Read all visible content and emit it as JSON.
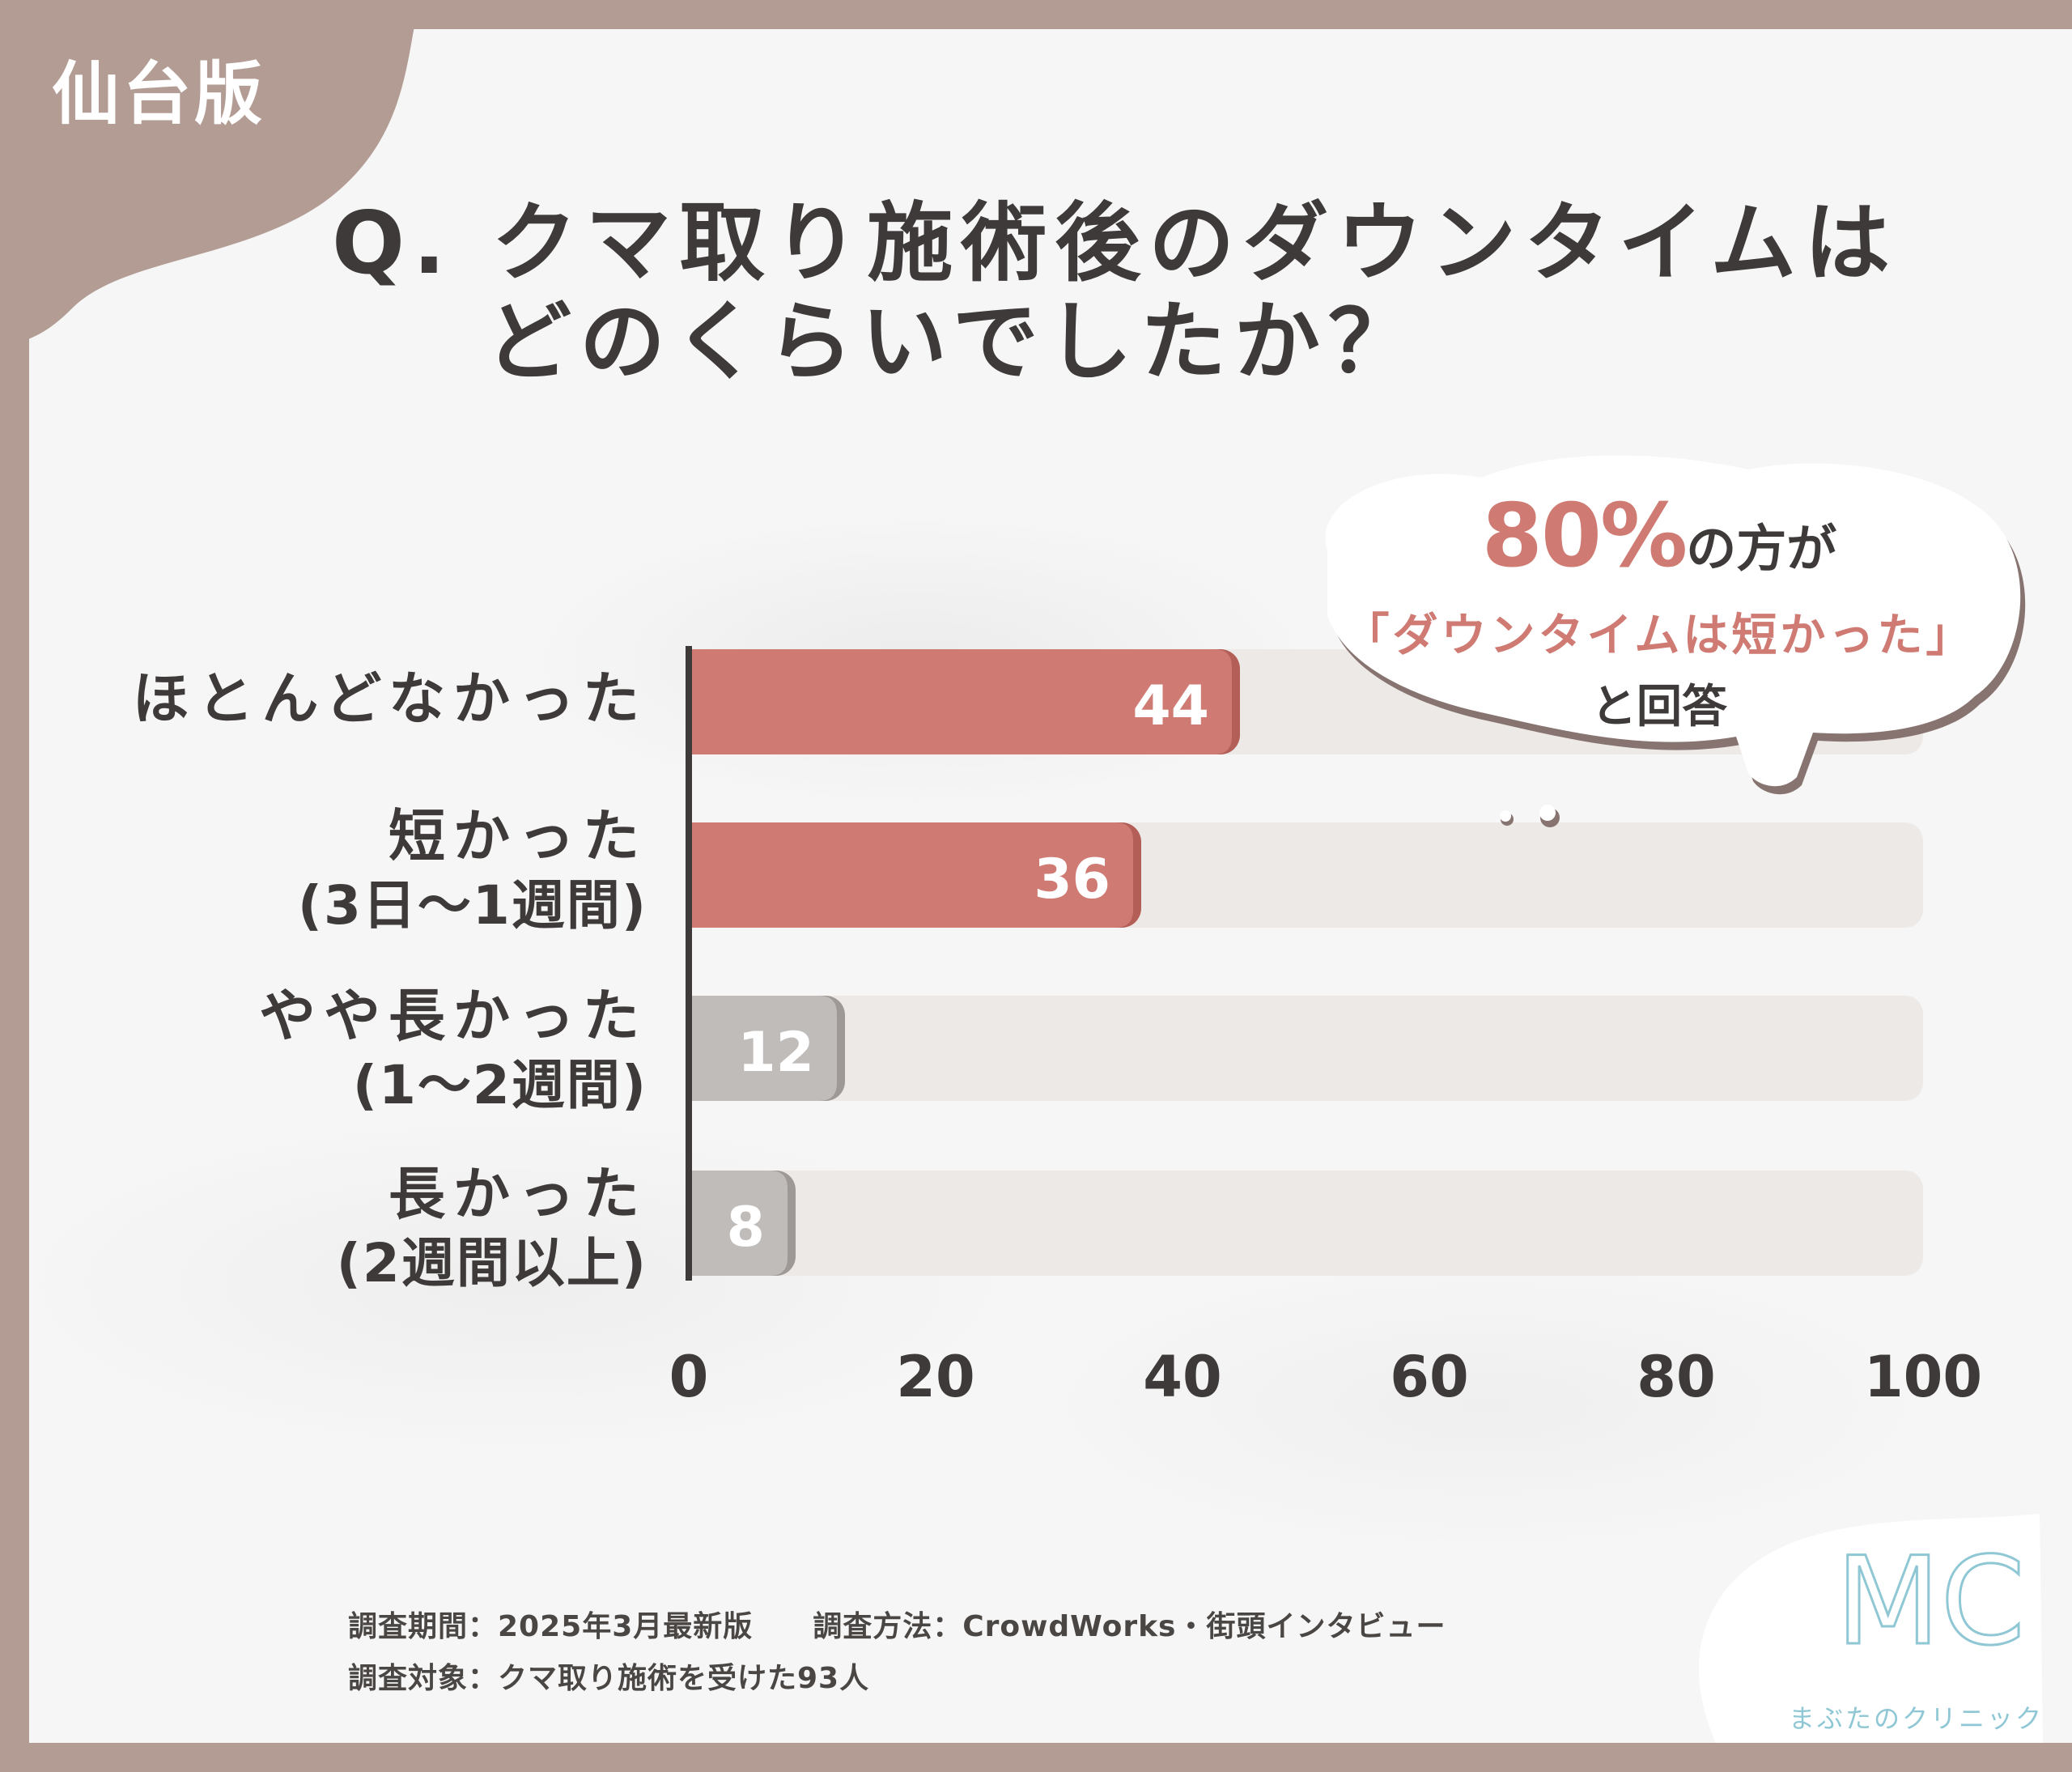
{
  "edition_label": "仙台版",
  "question": {
    "line1": "Q. クマ取り施術後のダウンタイムは",
    "line2": "どのくらいでしたか？"
  },
  "callout": {
    "percent": "80%",
    "line1_suffix": "の方が",
    "line2": "「ダウンタイムは短かった」",
    "line3": "と回答"
  },
  "chart_data": {
    "type": "bar",
    "orientation": "horizontal",
    "categories": [
      {
        "label": "ほとんどなかった",
        "sub": ""
      },
      {
        "label": "短かった",
        "sub": "(3日〜1週間)"
      },
      {
        "label": "やや長かった",
        "sub": "(1〜2週間)"
      },
      {
        "label": "長かった",
        "sub": "(2週間以上)"
      }
    ],
    "values": [
      44,
      36,
      12,
      8
    ],
    "value_labels": [
      "44",
      "36",
      "12",
      "8"
    ],
    "xlim": [
      0,
      100
    ],
    "xticks": [
      "0",
      "20",
      "40",
      "60",
      "80",
      "100"
    ],
    "colors": {
      "highlight": "#cf7a72",
      "highlight_shadow": "#b35f57",
      "muted": "#c0bcba",
      "muted_shadow": "#9e9896",
      "track": "#ede9e7",
      "axis": "#3d3a39"
    },
    "highlighted": [
      true,
      true,
      false,
      false
    ]
  },
  "footer": {
    "line1": "調査期間：2025年3月最新版　　調査方法：CrowdWorks・街頭インタビュー",
    "line2": "調査対象：クマ取り施術を受けた93人"
  },
  "logo": {
    "letters": "MC",
    "name": "まぶたのクリニック",
    "color": "#8fc7d4"
  }
}
